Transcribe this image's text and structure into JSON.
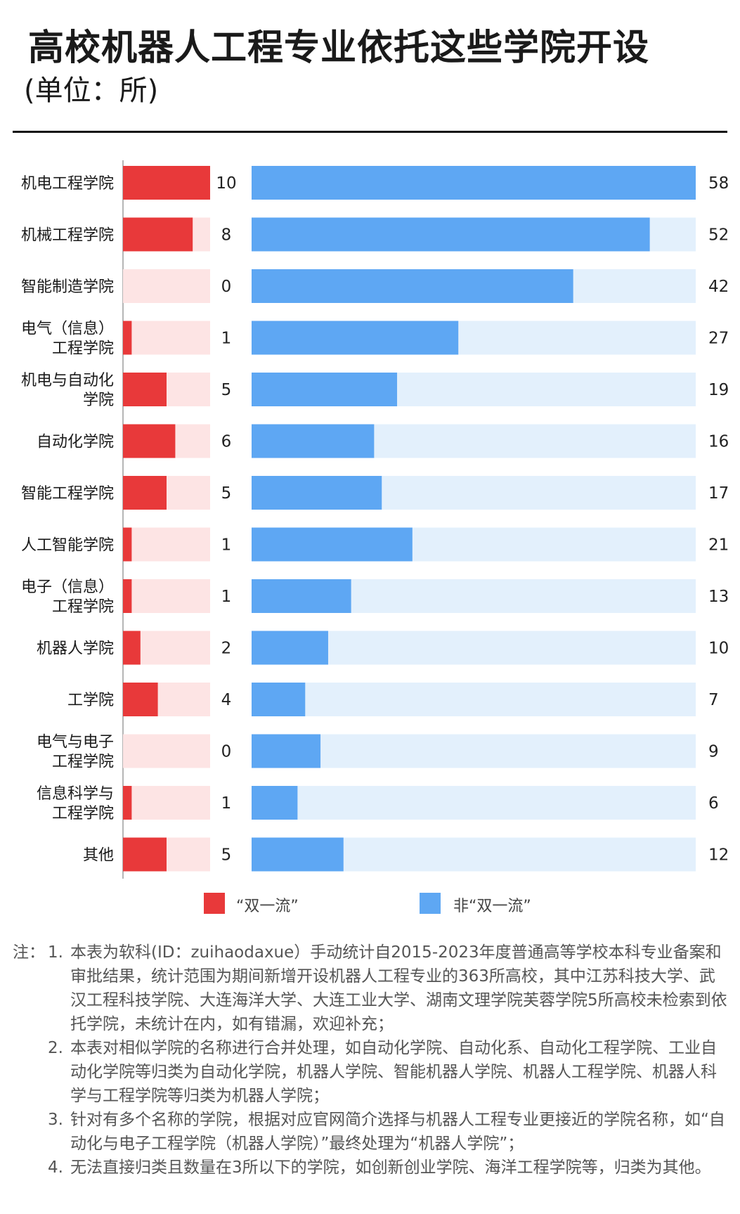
{
  "header": {
    "title": "高校机器人工程专业依托这些学院开设",
    "subtitle": "(单位：所)"
  },
  "colors": {
    "shuangyiliu": "#e8393a",
    "shuangyiliu_track": "#fde4e4",
    "fei_shuangyiliu": "#5ea7f3",
    "fei_shuangyiliu_track": "#e3f0fc"
  },
  "chart_data": {
    "type": "bar",
    "orientation": "horizontal",
    "categories": [
      [
        "机电工程学院"
      ],
      [
        "机械工程学院"
      ],
      [
        "智能制造学院"
      ],
      [
        "电气（信息）",
        "工程学院"
      ],
      [
        "机电与自动化",
        "学院"
      ],
      [
        "自动化学院"
      ],
      [
        "智能工程学院"
      ],
      [
        "人工智能学院"
      ],
      [
        "电子（信息）",
        "工程学院"
      ],
      [
        "机器人学院"
      ],
      [
        "工学院"
      ],
      [
        "电气与电子",
        "工程学院"
      ],
      [
        "信息科学与",
        "工程学院"
      ],
      [
        "其他"
      ]
    ],
    "series": [
      {
        "name": "“双一流”",
        "values": [
          10,
          8,
          0,
          1,
          5,
          6,
          5,
          1,
          1,
          2,
          4,
          0,
          1,
          5
        ]
      },
      {
        "name": "非“双一流”",
        "values": [
          58,
          52,
          42,
          27,
          19,
          16,
          17,
          21,
          13,
          10,
          7,
          9,
          6,
          12
        ]
      }
    ],
    "xlim": [
      [
        0,
        10
      ],
      [
        0,
        58
      ]
    ],
    "grid": false,
    "legend_position": "bottom"
  },
  "notes": {
    "label": "注：",
    "items": [
      "1. 本表为软科(ID：zuihaodaxue）手动统计自2015-2023年度普通高等学校本科专业备案和审批结果，统计范围为期间新增开设机器人工程专业的363所高校，其中江苏科技大学、武汉工程科技学院、大连海洋大学、大连工业大学、湖南文理学院芙蓉学院5所高校未检索到依托学院，未统计在内，如有错漏，欢迎补充；",
      "2. 本表对相似学院的名称进行合并处理，如自动化学院、自动化系、自动化工程学院、工业自动化学院等归类为自动化学院，机器人学院、智能机器人学院、机器人工程学院、机器人科学与工程学院等归类为机器人学院；",
      "3. 针对有多个名称的学院，根据对应官网简介选择与机器人工程专业更接近的学院名称，如“自动化与电子工程学院（机器人学院）”最终处理为“机器人学院”；",
      "4. 无法直接归类且数量在3所以下的学院，如创新创业学院、海洋工程学院等，归类为其他。"
    ]
  }
}
